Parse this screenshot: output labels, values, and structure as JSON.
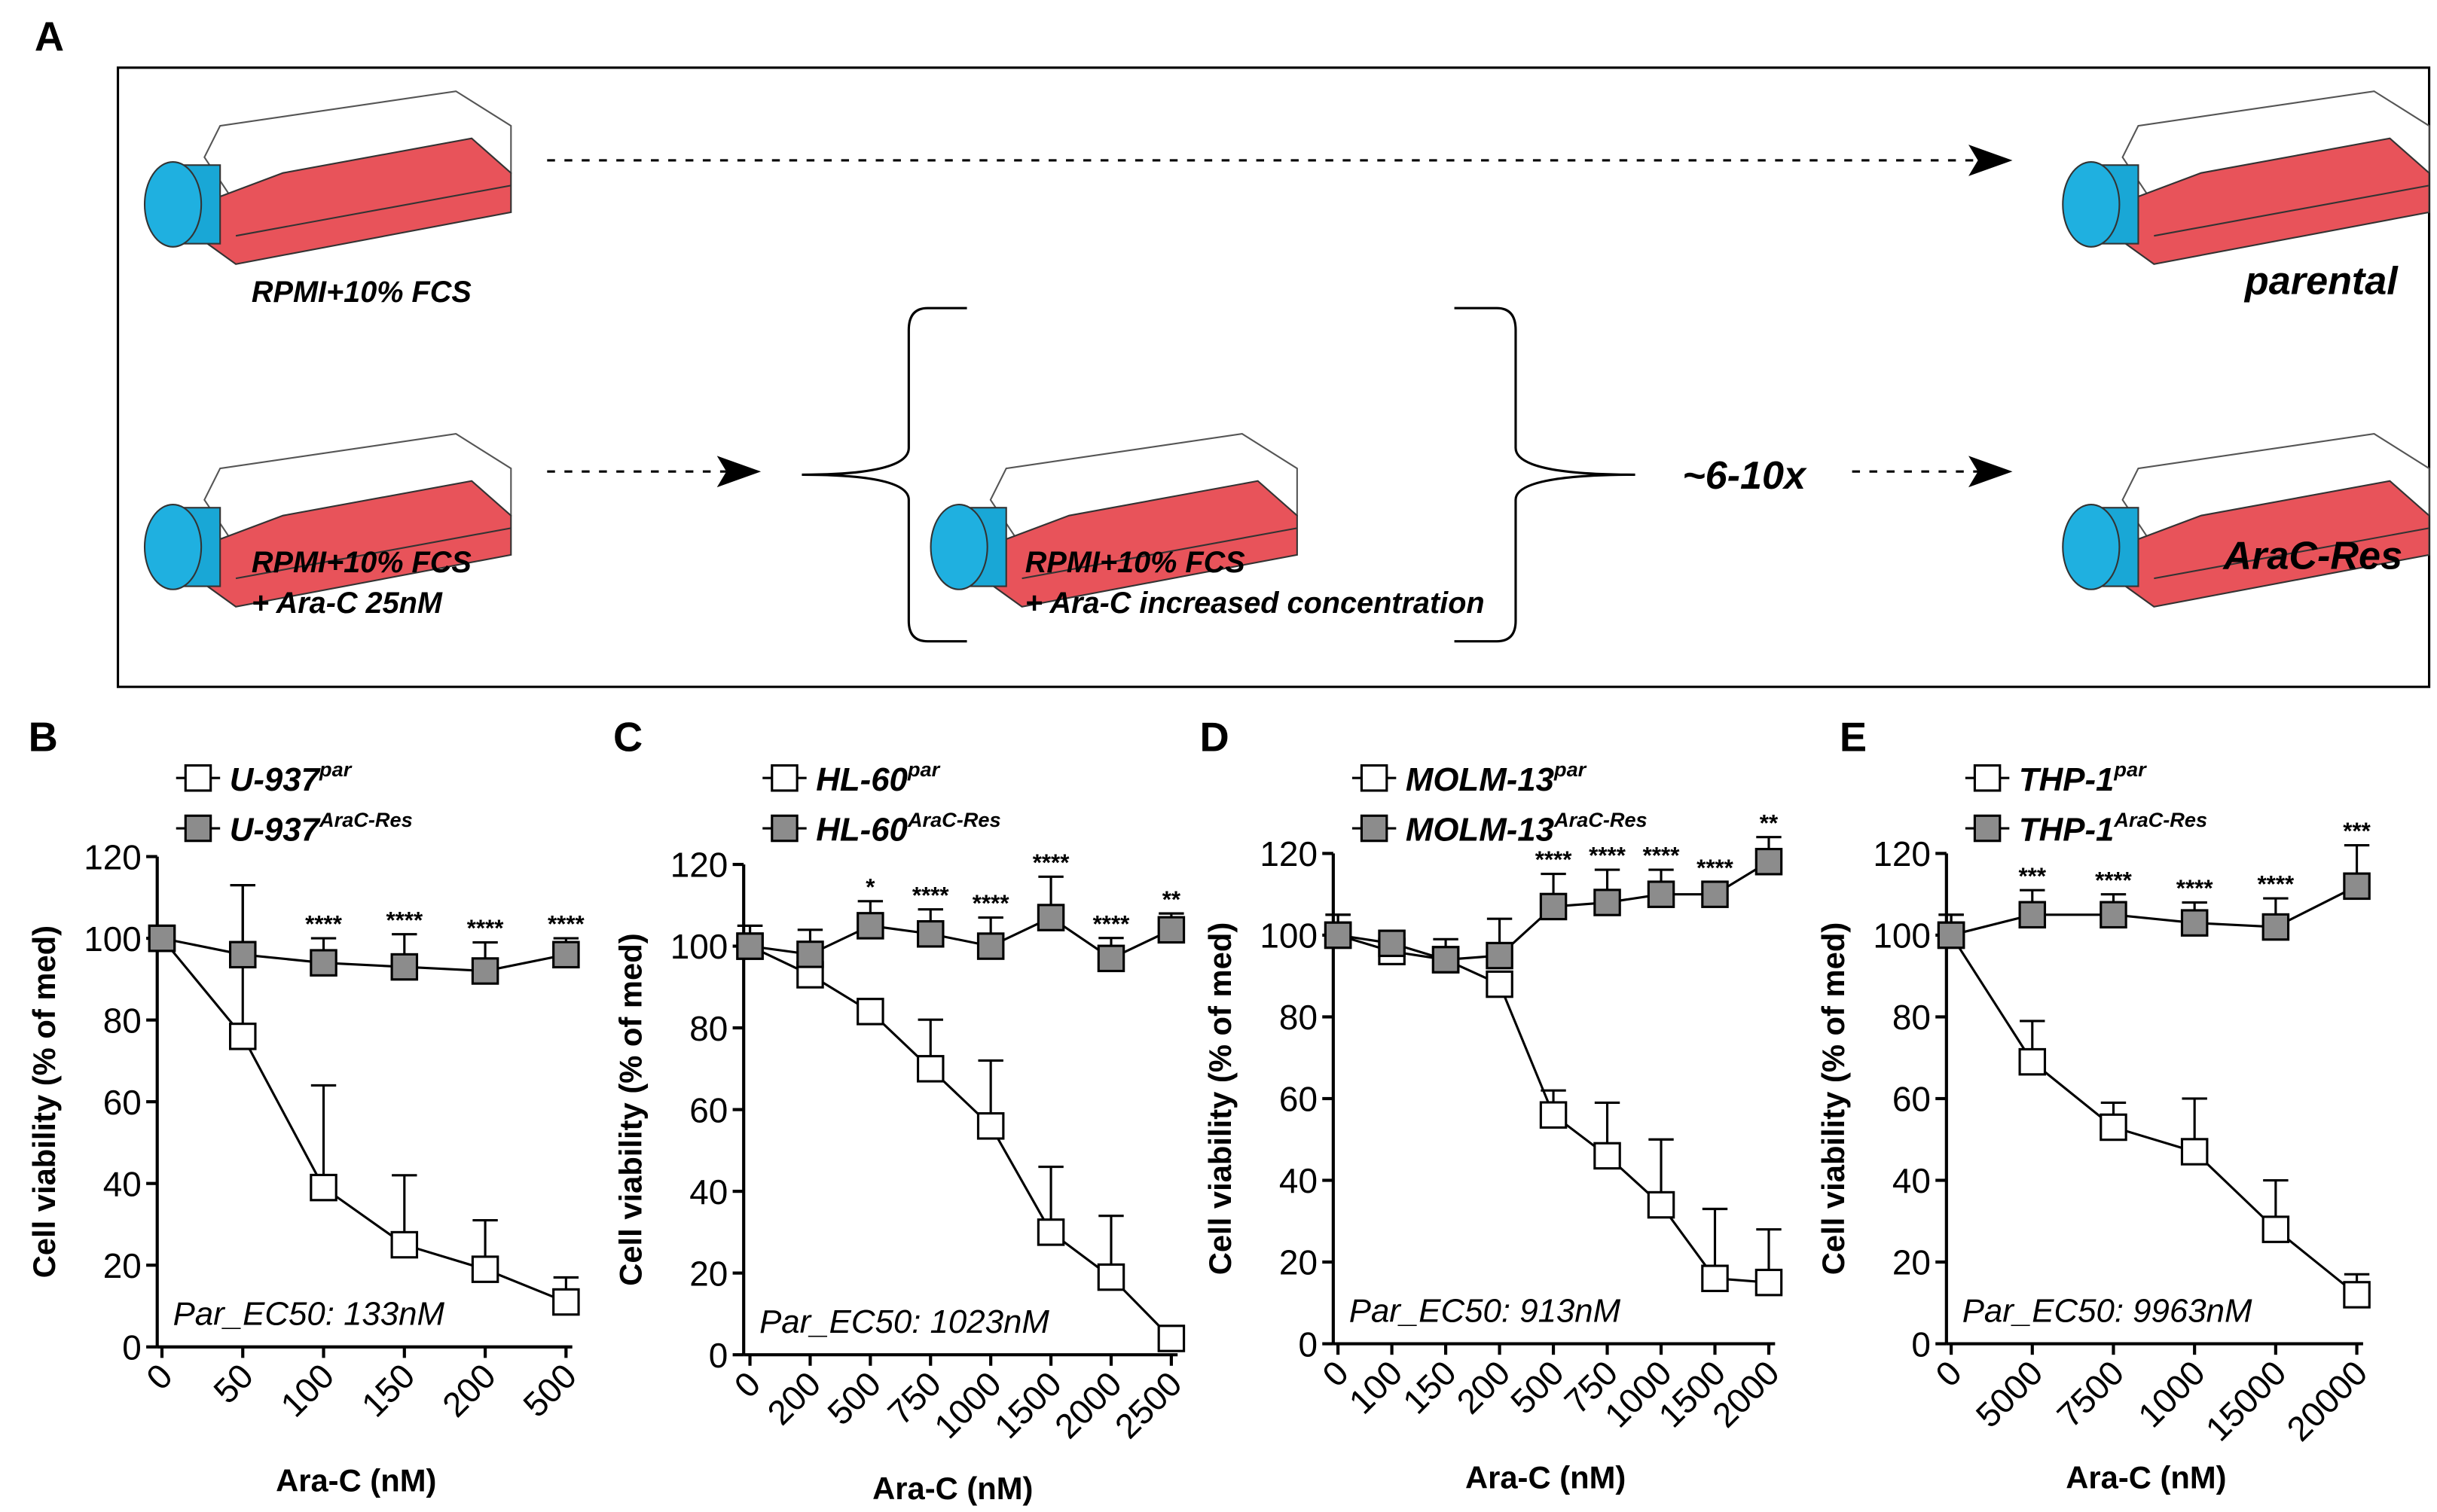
{
  "panel_a": {
    "label": "A",
    "start_medium": "RPMI+10% FCS",
    "resistant_start": [
      "RPMI+10% FCS",
      "+ Ara-C 25nM"
    ],
    "escalation": [
      "RPMI+10% FCS",
      "+ Ara-C increased concentration"
    ],
    "repeat": "~6-10x",
    "outcome_parental": "parental",
    "outcome_resistant": "AraC-Res"
  },
  "chart_data": [
    {
      "type": "line",
      "panel": "B",
      "ylabel": "Cell viability (% of med)",
      "xlabel": "Ara-C (nM)",
      "note": "Par_EC50: 133nM",
      "categories": [
        "0",
        "50",
        "100",
        "150",
        "200",
        "500"
      ],
      "ylim": [
        0,
        120
      ],
      "yticks": [
        0,
        20,
        40,
        60,
        80,
        100,
        120
      ],
      "series": [
        {
          "name": "U-937",
          "superscript": "par",
          "color": "#ffffff",
          "values": [
            100,
            76,
            39,
            25,
            19,
            11
          ],
          "errors": [
            3,
            37,
            25,
            17,
            12,
            6
          ]
        },
        {
          "name": "U-937",
          "superscript": "AraC-Res",
          "color": "#8c8c8c",
          "values": [
            100,
            96,
            94,
            93,
            92,
            96
          ],
          "errors": [
            3,
            17,
            6,
            8,
            7,
            4
          ]
        }
      ],
      "annotations": [
        null,
        null,
        "****",
        "****",
        "****",
        "****"
      ]
    },
    {
      "type": "line",
      "panel": "C",
      "ylabel": "Cell viability (% of med)",
      "xlabel": "Ara-C (nM)",
      "note": "Par_EC50: 1023nM",
      "categories": [
        "0",
        "200",
        "500",
        "750",
        "1000",
        "1500",
        "2000",
        "2500"
      ],
      "ylim": [
        0,
        120
      ],
      "yticks": [
        0,
        20,
        40,
        60,
        80,
        100,
        120
      ],
      "series": [
        {
          "name": "HL-60",
          "superscript": "par",
          "color": "#ffffff",
          "values": [
            100,
            93,
            84,
            70,
            56,
            30,
            19,
            4
          ],
          "errors": [
            5,
            3,
            0,
            12,
            16,
            16,
            15,
            0
          ]
        },
        {
          "name": "HL-60",
          "superscript": "AraC-Res",
          "color": "#8c8c8c",
          "values": [
            100,
            98,
            105,
            103,
            100,
            107,
            97,
            104
          ],
          "errors": [
            5,
            6,
            6,
            6,
            7,
            10,
            5,
            4
          ]
        }
      ],
      "annotations": [
        null,
        null,
        "*",
        "****",
        "****",
        "****",
        "****",
        "**"
      ]
    },
    {
      "type": "line",
      "panel": "D",
      "ylabel": "Cell viability (% of med)",
      "xlabel": "Ara-C (nM)",
      "note": "Par_EC50: 913nM",
      "categories": [
        "0",
        "100",
        "150",
        "200",
        "500",
        "750",
        "1000",
        "1500",
        "2000"
      ],
      "ylim": [
        0,
        120
      ],
      "yticks": [
        0,
        20,
        40,
        60,
        80,
        100,
        120
      ],
      "series": [
        {
          "name": "MOLM-13",
          "superscript": "par",
          "color": "#ffffff",
          "values": [
            100,
            96,
            94,
            88,
            56,
            46,
            34,
            16,
            15
          ],
          "errors": [
            5,
            3,
            5,
            3,
            6,
            13,
            16,
            17,
            13
          ]
        },
        {
          "name": "MOLM-13",
          "superscript": "AraC-Res",
          "color": "#8c8c8c",
          "values": [
            100,
            98,
            94,
            95,
            107,
            108,
            110,
            110,
            118
          ],
          "errors": [
            5,
            3,
            3,
            9,
            8,
            8,
            6,
            3,
            6
          ]
        }
      ],
      "annotations": [
        null,
        null,
        null,
        null,
        "****",
        "****",
        "****",
        "****",
        "**"
      ]
    },
    {
      "type": "line",
      "panel": "E",
      "ylabel": "Cell viability (% of med)",
      "xlabel": "Ara-C (nM)",
      "note": "Par_EC50: 9963nM",
      "categories": [
        "0",
        "5000",
        "7500",
        "1000",
        "15000",
        "20000"
      ],
      "ylim": [
        0,
        120
      ],
      "yticks": [
        0,
        20,
        40,
        60,
        80,
        100,
        120
      ],
      "series": [
        {
          "name": "THP-1",
          "superscript": "par",
          "color": "#ffffff",
          "values": [
            100,
            69,
            53,
            47,
            28,
            12
          ],
          "errors": [
            5,
            10,
            6,
            13,
            12,
            5
          ]
        },
        {
          "name": "THP-1",
          "superscript": "AraC-Res",
          "color": "#8c8c8c",
          "values": [
            100,
            105,
            105,
            103,
            102,
            112
          ],
          "errors": [
            5,
            6,
            5,
            5,
            7,
            10
          ]
        }
      ],
      "annotations": [
        null,
        "***",
        "****",
        "****",
        "****",
        "***"
      ]
    }
  ]
}
